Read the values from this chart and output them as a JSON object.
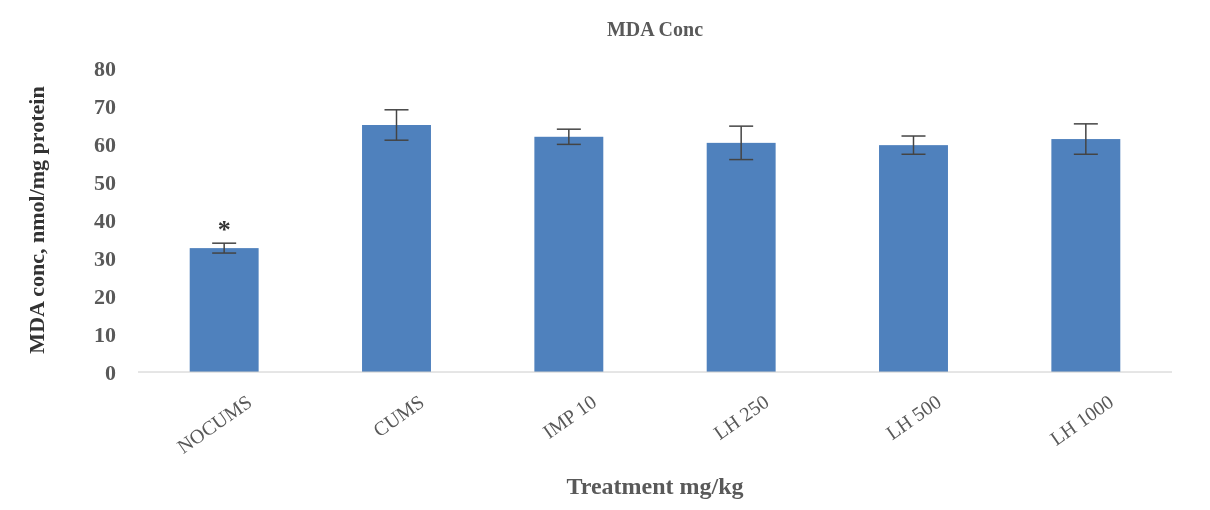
{
  "chart_data": {
    "type": "bar",
    "title": "MDA Conc",
    "xlabel": "Treatment mg/kg",
    "ylabel": "MDA conc, nmol/mg protein",
    "categories": [
      "NOCUMS",
      "CUMS",
      "IMP 10",
      "LH 250",
      "LH 500",
      "LH 1000"
    ],
    "values": [
      32.6,
      65.0,
      61.9,
      60.3,
      59.7,
      61.3
    ],
    "errors": [
      1.3,
      4,
      2,
      4.4,
      2.4,
      4
    ],
    "color": "#4f81bd",
    "ylim": [
      0,
      80
    ],
    "yticks": [
      0,
      10,
      20,
      30,
      40,
      50,
      60,
      70,
      80
    ],
    "grid": false,
    "annotations": [
      {
        "text": "*",
        "x": "NOCUMS",
        "y": 32.6
      }
    ]
  }
}
